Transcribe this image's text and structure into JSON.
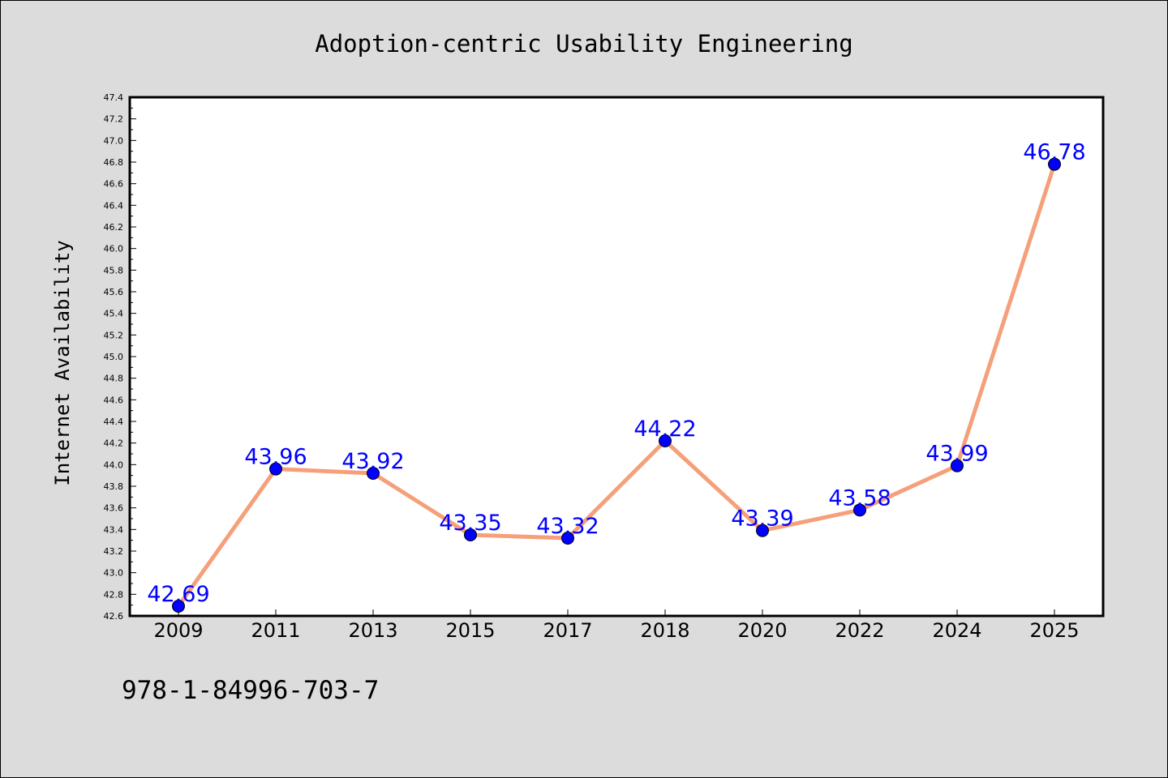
{
  "chart_data": {
    "type": "line",
    "title": "Adoption-centric Usability Engineering",
    "xlabel": "",
    "ylabel": "Internet Availability",
    "categories": [
      "2009",
      "2011",
      "2013",
      "2015",
      "2017",
      "2018",
      "2020",
      "2022",
      "2024",
      "2025"
    ],
    "series": [
      {
        "values": [
          42.69,
          43.96,
          43.92,
          43.35,
          43.32,
          44.22,
          43.39,
          43.58,
          43.99,
          46.78
        ],
        "labels": [
          "42.69",
          "43.96",
          "43.92",
          "43.35",
          "43.32",
          "44.22",
          "43.39",
          "43.58",
          "43.99",
          "46.78"
        ],
        "line_color": "#f5a07a",
        "marker_color": "#0000ff"
      }
    ],
    "ylim": [
      42.6,
      47.4
    ],
    "yticks": [
      "42.6",
      "42.8",
      "43.0",
      "43.2",
      "43.4",
      "43.6",
      "43.8",
      "44.0",
      "44.2",
      "44.4",
      "44.6",
      "44.8",
      "45.0",
      "45.2",
      "45.4",
      "45.6",
      "45.8",
      "46.0",
      "46.2",
      "46.4",
      "46.6",
      "46.8",
      "47.0",
      "47.2",
      "47.4"
    ],
    "grid": false,
    "legend": "none"
  },
  "footnote": "978-1-84996-703-7",
  "colors": {
    "background": "#dcdcdc",
    "plot_background": "#ffffff",
    "line": "#f5a07a",
    "marker": "#0000ff",
    "data_label": "#0000ff"
  }
}
